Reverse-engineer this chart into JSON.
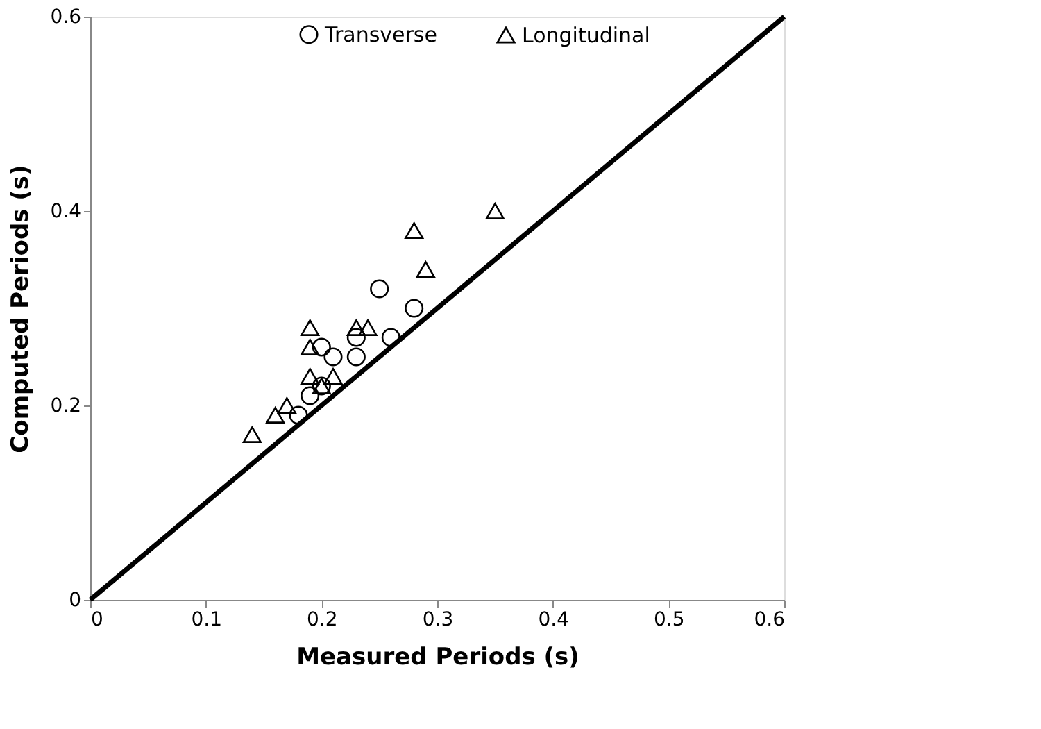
{
  "chart_data": {
    "type": "scatter",
    "xlabel": "Measured Periods (s)",
    "ylabel": "Computed Periods  (s)",
    "xlim": [
      0,
      0.6
    ],
    "ylim": [
      0,
      0.6
    ],
    "xticks": [
      0,
      0.1,
      0.2,
      0.3,
      0.4,
      0.5,
      0.6
    ],
    "yticks": [
      0,
      0.2,
      0.4,
      0.6
    ],
    "grid": false,
    "legend": "top",
    "series": [
      {
        "name": "Transverse",
        "marker": "circle",
        "color": "#000000",
        "x": [
          0.18,
          0.19,
          0.2,
          0.2,
          0.21,
          0.23,
          0.23,
          0.25,
          0.26,
          0.28
        ],
        "values": [
          0.19,
          0.21,
          0.22,
          0.26,
          0.25,
          0.25,
          0.27,
          0.32,
          0.27,
          0.3
        ]
      },
      {
        "name": "Longitudinal",
        "marker": "triangle",
        "color": "#000000",
        "x": [
          0.14,
          0.16,
          0.17,
          0.19,
          0.19,
          0.19,
          0.2,
          0.21,
          0.23,
          0.24,
          0.28,
          0.29,
          0.35
        ],
        "values": [
          0.17,
          0.19,
          0.2,
          0.23,
          0.26,
          0.28,
          0.22,
          0.23,
          0.28,
          0.28,
          0.38,
          0.34,
          0.4
        ]
      },
      {
        "type": "line",
        "marker": "none",
        "line_style": "solid",
        "color": "#000000",
        "x": [
          0,
          0.6
        ],
        "values": [
          0,
          0.6
        ]
      }
    ]
  }
}
